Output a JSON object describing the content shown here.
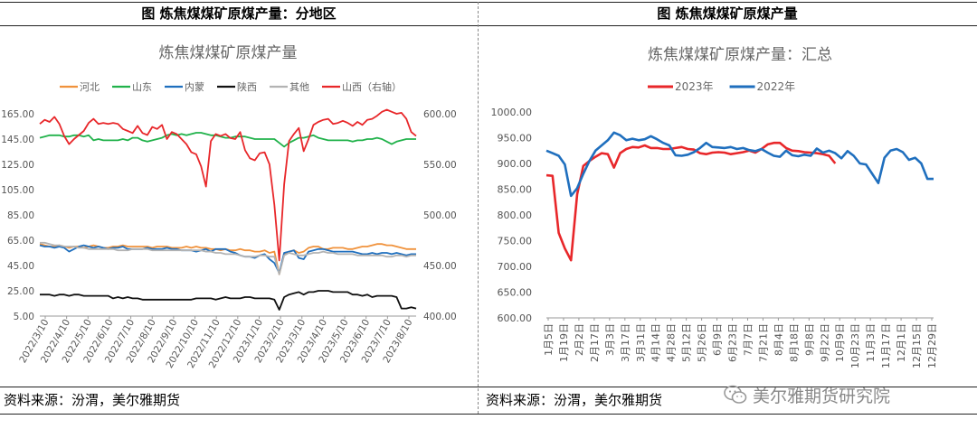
{
  "left_panel": {
    "header": "图  炼焦煤煤矿原煤产量：分地区",
    "source": "资料来源：汾渭，美尔雅期货"
  },
  "right_panel": {
    "header": "图  炼焦煤煤矿原煤产量",
    "source": "资料来源：汾渭，美尔雅期货"
  },
  "watermark": {
    "text": "美尔雅期货研究院",
    "icon": "wechat-icon"
  },
  "chart_data": [
    {
      "type": "line",
      "title": "炼焦煤煤矿原煤产量",
      "xlabel": "",
      "ylabel": "",
      "ylim": [
        5,
        165
      ],
      "y_ticks": [
        "165.00",
        "145.00",
        "125.00",
        "105.00",
        "85.00",
        "65.00",
        "45.00",
        "25.00",
        "5.00"
      ],
      "y2lim": [
        400,
        600
      ],
      "y2_ticks": [
        "600.00",
        "550.00",
        "500.00",
        "450.00",
        "400.00"
      ],
      "x_ticks": [
        "2022/3/10",
        "2022/4/10",
        "2022/5/10",
        "2022/6/10",
        "2022/7/10",
        "2022/8/10",
        "2022/9/10",
        "2022/10/10",
        "2022/11/10",
        "2022/12/10",
        "2023/1/10",
        "2023/2/10",
        "2023/3/10",
        "2023/4/10",
        "2023/5/10",
        "2023/6/10",
        "2023/7/10",
        "2023/8/10"
      ],
      "grid": false,
      "legend_position": "top",
      "series": [
        {
          "name": "河北",
          "color": "#F0923C",
          "axis": "left",
          "values": [
            62,
            61,
            60,
            60,
            61,
            60,
            59,
            60,
            60,
            59,
            60,
            61,
            60,
            59,
            59,
            60,
            60,
            61,
            60,
            60,
            60,
            60,
            60,
            59,
            60,
            60,
            60,
            59,
            59,
            59,
            60,
            59,
            60,
            59,
            59,
            58,
            58,
            57,
            58,
            57,
            57,
            58,
            57,
            57,
            56,
            56,
            57,
            55,
            56,
            38,
            54,
            56,
            57,
            55,
            56,
            59,
            60,
            60,
            58,
            58,
            59,
            59,
            59,
            58,
            58,
            59,
            60,
            60,
            61,
            62,
            62,
            61,
            61,
            60,
            59,
            58,
            58,
            58
          ]
        },
        {
          "name": "山东",
          "color": "#21B24B",
          "axis": "left",
          "values": [
            146,
            147,
            148,
            148,
            148,
            147,
            147,
            148,
            148,
            147,
            148,
            144,
            145,
            144,
            144,
            144,
            144,
            145,
            144,
            146,
            146,
            144,
            143,
            144,
            145,
            146,
            148,
            149,
            148,
            149,
            148,
            149,
            150,
            150,
            149,
            148,
            148,
            147,
            146,
            146,
            147,
            147,
            147,
            146,
            145,
            145,
            145,
            145,
            145,
            142,
            139,
            142,
            144,
            146,
            146,
            147,
            148,
            146,
            145,
            144,
            144,
            144,
            144,
            144,
            143,
            144,
            144,
            145,
            145,
            146,
            145,
            143,
            141,
            143,
            144,
            145,
            145,
            145
          ]
        },
        {
          "name": "内蒙",
          "color": "#1F6FBE",
          "axis": "left",
          "values": [
            61,
            60,
            60,
            59,
            60,
            59,
            56,
            58,
            60,
            61,
            60,
            59,
            60,
            59,
            58,
            59,
            59,
            60,
            58,
            58,
            58,
            58,
            59,
            58,
            58,
            58,
            59,
            58,
            58,
            57,
            57,
            57,
            56,
            57,
            58,
            56,
            58,
            58,
            58,
            56,
            55,
            53,
            52,
            52,
            51,
            53,
            54,
            50,
            47,
            39,
            55,
            56,
            57,
            51,
            50,
            56,
            57,
            58,
            58,
            57,
            56,
            56,
            56,
            56,
            56,
            55,
            54,
            54,
            55,
            54,
            55,
            55,
            54,
            55,
            54,
            53,
            54,
            54
          ]
        },
        {
          "name": "陕西",
          "color": "#111111",
          "axis": "left",
          "values": [
            22,
            22,
            22,
            21,
            22,
            22,
            21,
            22,
            22,
            21,
            21,
            21,
            21,
            21,
            21,
            19,
            20,
            19,
            20,
            19,
            19,
            18,
            18,
            18,
            18,
            18,
            18,
            18,
            18,
            18,
            18,
            18,
            19,
            19,
            19,
            19,
            18,
            19,
            20,
            19,
            19,
            19,
            20,
            20,
            19,
            19,
            19,
            19,
            18,
            10,
            20,
            22,
            23,
            24,
            22,
            24,
            24,
            25,
            25,
            25,
            24,
            24,
            24,
            24,
            22,
            22,
            21,
            22,
            20,
            21,
            21,
            21,
            21,
            20,
            11,
            11,
            12,
            11
          ]
        },
        {
          "name": "其他",
          "color": "#B3B3B3",
          "axis": "left",
          "values": [
            63,
            63,
            62,
            61,
            61,
            60,
            60,
            60,
            59,
            59,
            58,
            58,
            58,
            58,
            58,
            58,
            57,
            57,
            57,
            58,
            58,
            58,
            58,
            57,
            57,
            57,
            57,
            57,
            57,
            57,
            57,
            57,
            57,
            57,
            56,
            56,
            55,
            55,
            54,
            54,
            54,
            53,
            52,
            52,
            52,
            53,
            53,
            52,
            52,
            38,
            53,
            55,
            54,
            53,
            53,
            54,
            55,
            55,
            56,
            55,
            55,
            54,
            54,
            54,
            54,
            53,
            53,
            53,
            53,
            53,
            53,
            52,
            52,
            53,
            53,
            52,
            53,
            53
          ]
        },
        {
          "name": "山西（右轴）",
          "color": "#E8272A",
          "axis": "right",
          "values": [
            590,
            594,
            592,
            597,
            590,
            578,
            570,
            575,
            579,
            583,
            591,
            595,
            590,
            591,
            590,
            591,
            590,
            585,
            583,
            581,
            588,
            581,
            579,
            587,
            585,
            589,
            575,
            582,
            580,
            575,
            570,
            562,
            560,
            548,
            528,
            573,
            580,
            578,
            580,
            576,
            575,
            582,
            564,
            556,
            554,
            561,
            562,
            550,
            510,
            455,
            530,
            573,
            580,
            586,
            563,
            575,
            589,
            592,
            594,
            595,
            590,
            591,
            593,
            591,
            588,
            592,
            589,
            594,
            595,
            598,
            602,
            604,
            602,
            600,
            601,
            595,
            582,
            578
          ]
        }
      ]
    },
    {
      "type": "line",
      "title": "炼焦煤煤矿原煤产量：汇总",
      "xlabel": "",
      "ylabel": "",
      "ylim": [
        600,
        1000
      ],
      "y_ticks": [
        "1000.00",
        "950.00",
        "900.00",
        "850.00",
        "800.00",
        "750.00",
        "700.00",
        "650.00",
        "600.00"
      ],
      "x_ticks": [
        "1月5日",
        "1月19日",
        "2月2日",
        "2月17日",
        "3月3日",
        "3月17日",
        "3月31日",
        "4月14日",
        "4月28日",
        "5月12日",
        "5月26日",
        "6月9日",
        "6月23日",
        "7月7日",
        "7月21日",
        "8月4日",
        "8月18日",
        "9月8日",
        "9月22日",
        "10月9日",
        "10月23日",
        "11月3日",
        "11月17日",
        "12月1日",
        "12月15日",
        "12月29日"
      ],
      "grid": false,
      "legend_position": "top",
      "series": [
        {
          "name": "2023年",
          "color": "#E8272A",
          "values": [
            877,
            876,
            765,
            735,
            712,
            840,
            895,
            905,
            913,
            920,
            918,
            892,
            920,
            928,
            932,
            931,
            935,
            930,
            930,
            928,
            928,
            930,
            932,
            928,
            927,
            920,
            918,
            921,
            922,
            921,
            918,
            920,
            922,
            925,
            921,
            928,
            937,
            940,
            940,
            930,
            925,
            924,
            922,
            921,
            920,
            918,
            915,
            900
          ]
        },
        {
          "name": "2022年",
          "color": "#1F6FBE",
          "values": [
            925,
            920,
            915,
            898,
            837,
            852,
            880,
            905,
            925,
            935,
            945,
            960,
            955,
            945,
            948,
            945,
            947,
            953,
            947,
            940,
            935,
            916,
            915,
            917,
            922,
            930,
            940,
            932,
            931,
            930,
            932,
            928,
            930,
            926,
            924,
            928,
            921,
            915,
            913,
            925,
            916,
            914,
            917,
            915,
            929,
            921,
            925,
            920,
            910,
            924,
            915,
            900,
            898,
            880,
            862,
            911,
            925,
            928,
            922,
            907,
            911,
            900,
            870,
            870
          ]
        }
      ]
    }
  ]
}
